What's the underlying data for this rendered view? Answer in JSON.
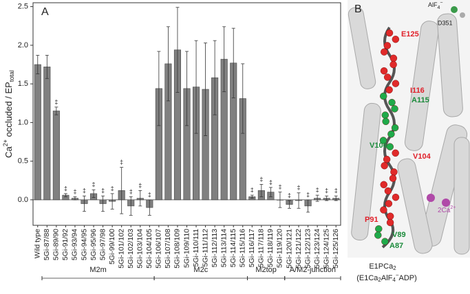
{
  "chart_data": {
    "type": "bar",
    "panel_label": "A",
    "ylabel": [
      "Ca",
      "2+",
      " occluded / EP",
      "total"
    ],
    "categories": [
      "Wild type",
      "5Gi-87/88",
      "5Gi-89/90",
      "5Gi-91/92",
      "5Gi-93/94",
      "5Gi-94/95",
      "5Gi-95/96",
      "5Gi-97/98",
      "5Gi-99/100",
      "5Gi-101/102",
      "5Gi-102/103",
      "5Gi-103/104",
      "5Gi-104/105",
      "5Gi-106/107",
      "5Gi-107/108",
      "5Gi-108/109",
      "5Gi-109/110",
      "5Gi-110/111",
      "5Gi-111/112",
      "5Gi-112/113",
      "5Gi-113/114",
      "5Gi-114/115",
      "5Gi-115/116",
      "5Gi-116/117",
      "5Gi-117/118",
      "5Gi-118/119",
      "5Gi-119/120",
      "5Gi-120/121",
      "5Gi-121/122",
      "5Gi-122/123",
      "5Gi-123/124",
      "5Gi-124/125",
      "5Gi-125/126"
    ],
    "values": [
      1.75,
      1.72,
      1.15,
      0.06,
      0.02,
      -0.05,
      0.08,
      -0.05,
      -0.02,
      0.12,
      -0.08,
      0.02,
      -0.1,
      1.44,
      1.76,
      1.94,
      1.44,
      1.46,
      1.43,
      1.58,
      1.82,
      1.77,
      1.31,
      0.04,
      0.12,
      0.1,
      0.0,
      -0.06,
      -0.01,
      -0.08,
      0.02,
      0.02,
      0.02
    ],
    "errors": [
      0.12,
      0.15,
      0.05,
      0.02,
      0.02,
      0.1,
      0.05,
      0.1,
      0.1,
      0.3,
      0.12,
      0.1,
      0.1,
      0.48,
      0.48,
      0.55,
      0.48,
      0.6,
      0.6,
      0.48,
      0.42,
      0.45,
      0.45,
      0.02,
      0.08,
      0.06,
      0.1,
      0.05,
      0.1,
      0.08,
      0.04,
      0.03,
      0.03
    ],
    "markers": [
      null,
      null,
      "‡",
      "‡",
      "‡",
      "‡",
      "‡",
      "‡",
      "‡",
      "‡",
      "‡",
      "‡",
      "‡",
      null,
      null,
      null,
      null,
      null,
      null,
      null,
      null,
      null,
      null,
      "‡",
      "‡",
      "‡",
      "‡",
      "‡",
      "‡",
      "‡",
      "‡",
      "‡",
      "‡"
    ],
    "color": "#808080",
    "ylim": [
      -0.33,
      2.55
    ],
    "yticks": [
      0.0,
      0.5,
      1.0,
      1.5,
      2.0,
      2.5
    ],
    "groups": [
      "M2m",
      "M2c",
      "M2top",
      "A/M2-junction"
    ]
  },
  "panel_b": {
    "panel_label": "B",
    "labels": {
      "e125": "E125",
      "i116": "I116",
      "a115": "A115",
      "v106": "V106",
      "v104": "V104",
      "p91": "P91",
      "v89": "V89",
      "a87": "A87",
      "ca": "2Ca",
      "ca_sup": "2+",
      "alf": "AlF",
      "alf_sub": "4",
      "alf_sup": "−",
      "d351": "D351"
    },
    "caption": [
      "E1PCa",
      "2",
      "(E1Ca",
      "2",
      "AlF",
      "4",
      "−",
      "ADP)"
    ]
  }
}
